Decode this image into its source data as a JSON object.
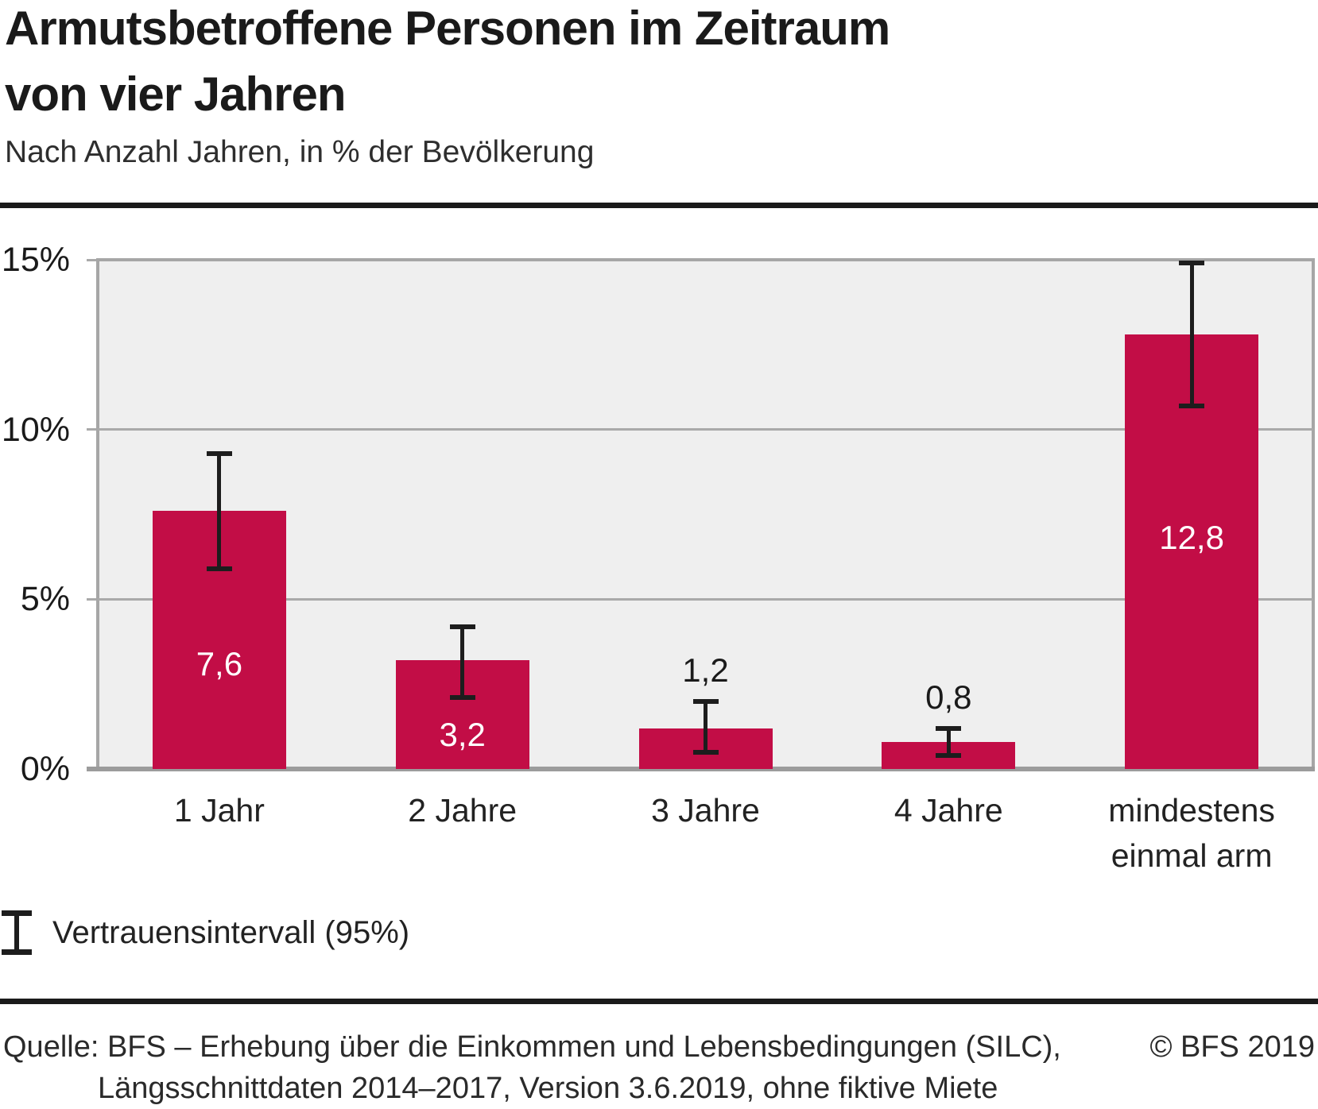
{
  "title": "Armutsbetroffene Personen im Zeitraum von vier Jahren",
  "title_lines": [
    "Armutsbetroffene Personen im Zeitraum",
    "von vier Jahren"
  ],
  "subtitle": "Nach Anzahl Jahren, in % der Bevölkerung",
  "legend": {
    "symbol": "error-bar",
    "label": "Vertrauensintervall (95%)"
  },
  "footer": {
    "source_line1": "Quelle: BFS – Erhebung über die Einkommen und Lebensbedingungen (SILC),",
    "source_line2": "Längsschnittdaten 2014–2017, Version 3.6.2019, ohne fiktive Miete",
    "copyright": "© BFS 2019"
  },
  "colors": {
    "bar": "#c20d46",
    "plot_background": "#efefef",
    "gridline": "#a9a9a9",
    "plot_border": "#a6a6a6",
    "axis_line": "#9c9c9c",
    "error_bar": "#1d1d1d",
    "divider_rule": "#1a1a1a",
    "value_label_inside": "#ffffff",
    "value_label_outside": "#1a1a1a"
  },
  "chart_data": {
    "type": "bar",
    "title": "Armutsbetroffene Personen im Zeitraum von vier Jahren",
    "subtitle": "Nach Anzahl Jahren, in % der Bevölkerung",
    "categories": [
      "1 Jahr",
      "2 Jahre",
      "3 Jahre",
      "4 Jahre",
      "mindestens einmal arm"
    ],
    "category_lines": [
      [
        "1 Jahr"
      ],
      [
        "2 Jahre"
      ],
      [
        "3 Jahre"
      ],
      [
        "4 Jahre"
      ],
      [
        "mindestens",
        "einmal arm"
      ]
    ],
    "values": [
      7.6,
      3.2,
      1.2,
      0.8,
      12.8
    ],
    "value_labels": [
      "7,6",
      "3,2",
      "1,2",
      "0,8",
      "12,8"
    ],
    "error_bars": {
      "level": "95%",
      "ci_low": [
        5.9,
        2.1,
        0.5,
        0.4,
        10.7
      ],
      "ci_high": [
        9.3,
        4.2,
        2.0,
        1.2,
        14.9
      ]
    },
    "xlabel": "",
    "ylabel": "% der Bevölkerung",
    "ylim": [
      0,
      15
    ],
    "y_ticks": [
      {
        "value": 0,
        "label": "0%"
      },
      {
        "value": 5,
        "label": "5%"
      },
      {
        "value": 10,
        "label": "10%"
      },
      {
        "value": 15,
        "label": "15%"
      }
    ],
    "grid": true,
    "grid_values": [
      5,
      10
    ],
    "legend": "Vertrauensintervall (95%)",
    "legend_position": "bottom-left",
    "bar_color": "#c20d46",
    "value_label_inside": [
      true,
      true,
      false,
      false,
      true
    ],
    "value_label_center_pct": [
      3.1,
      1.0,
      2.9,
      2.1,
      6.8
    ]
  }
}
